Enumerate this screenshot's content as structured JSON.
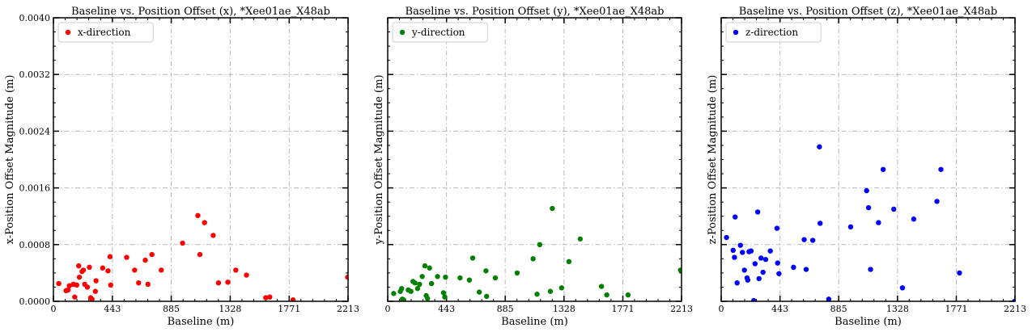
{
  "chart_data": [
    {
      "type": "scatter",
      "title": "Baseline vs. Position Offset (x), *Xee01ae_X48ab",
      "xlabel": "Baseline (m)",
      "ylabel": "x-Position Offset Magnitude (m)",
      "xlim": [
        0,
        2213
      ],
      "ylim": [
        0,
        0.004
      ],
      "xticks": [
        "0",
        "443",
        "885",
        "1328",
        "1771",
        "2213"
      ],
      "yticks": [
        "0.0000",
        "0.0008",
        "0.0016",
        "0.0024",
        "0.0032",
        "0.0040"
      ],
      "show_yticklabels": true,
      "grid": true,
      "legend_position": "top-left",
      "series": [
        {
          "name": "x-direction",
          "color": "#ff0000",
          "points": [
            [
              40,
              0.00025
            ],
            [
              95,
              0.00015
            ],
            [
              110,
              0.00016
            ],
            [
              120,
              0.00022
            ],
            [
              150,
              0.00024
            ],
            [
              160,
              6e-05
            ],
            [
              175,
              0.00023
            ],
            [
              190,
              0.0005
            ],
            [
              195,
              0.00034
            ],
            [
              215,
              0.00042
            ],
            [
              225,
              0.00044
            ],
            [
              235,
              0.00024
            ],
            [
              255,
              0.0002
            ],
            [
              270,
              0.00048
            ],
            [
              280,
              5e-05
            ],
            [
              290,
              3e-05
            ],
            [
              315,
              0.00014
            ],
            [
              320,
              0.00029
            ],
            [
              370,
              0.00047
            ],
            [
              410,
              0.00043
            ],
            [
              425,
              0.00063
            ],
            [
              430,
              0.00023
            ],
            [
              550,
              0.00062
            ],
            [
              610,
              0.00044
            ],
            [
              640,
              0.00026
            ],
            [
              690,
              0.00058
            ],
            [
              710,
              0.00024
            ],
            [
              740,
              0.00066
            ],
            [
              810,
              0.00044
            ],
            [
              970,
              0.00082
            ],
            [
              1085,
              0.00121
            ],
            [
              1100,
              0.00066
            ],
            [
              1135,
              0.00111
            ],
            [
              1200,
              0.00093
            ],
            [
              1240,
              0.00026
            ],
            [
              1310,
              0.00027
            ],
            [
              1370,
              0.00044
            ],
            [
              1450,
              0.00037
            ],
            [
              1595,
              5e-05
            ],
            [
              1625,
              6e-05
            ],
            [
              1800,
              2e-05
            ],
            [
              2210,
              0.00034
            ]
          ]
        }
      ]
    },
    {
      "type": "scatter",
      "title": "Baseline vs. Position Offset (y), *Xee01ae_X48ab",
      "xlabel": "Baseline (m)",
      "ylabel": "y-Position Offset Magnitude (m)",
      "xlim": [
        0,
        2213
      ],
      "ylim": [
        0,
        0.004
      ],
      "xticks": [
        "0",
        "443",
        "885",
        "1328",
        "1771",
        "2213"
      ],
      "yticks": [],
      "show_yticklabels": false,
      "grid": true,
      "legend_position": "top-left",
      "series": [
        {
          "name": "y-direction",
          "color": "#008000",
          "points": [
            [
              45,
              0.00011
            ],
            [
              95,
              0.00014
            ],
            [
              105,
              0.00018
            ],
            [
              110,
              3e-05
            ],
            [
              120,
              2e-05
            ],
            [
              155,
              0.00016
            ],
            [
              175,
              0.00014
            ],
            [
              190,
              0.00028
            ],
            [
              205,
              0.00026
            ],
            [
              225,
              0.00018
            ],
            [
              240,
              0.00024
            ],
            [
              260,
              0.00035
            ],
            [
              280,
              0.0005
            ],
            [
              290,
              8e-05
            ],
            [
              300,
              4e-05
            ],
            [
              315,
              0.00047
            ],
            [
              330,
              0.00025
            ],
            [
              375,
              0.00035
            ],
            [
              420,
              0.00012
            ],
            [
              430,
              6e-05
            ],
            [
              435,
              0.00034
            ],
            [
              545,
              0.00033
            ],
            [
              615,
              0.0003
            ],
            [
              640,
              0.00061
            ],
            [
              690,
              0.00013
            ],
            [
              740,
              0.00043
            ],
            [
              745,
              7e-05
            ],
            [
              810,
              0.00033
            ],
            [
              975,
              0.0004
            ],
            [
              1095,
              0.0006
            ],
            [
              1125,
              0.0001
            ],
            [
              1145,
              0.0008
            ],
            [
              1225,
              0.00014
            ],
            [
              1240,
              0.00131
            ],
            [
              1310,
              0.00019
            ],
            [
              1365,
              0.00056
            ],
            [
              1450,
              0.00088
            ],
            [
              1610,
              0.00021
            ],
            [
              1650,
              9e-05
            ],
            [
              1810,
              9e-05
            ],
            [
              2205,
              0.00044
            ]
          ]
        }
      ]
    },
    {
      "type": "scatter",
      "title": "Baseline vs. Position Offset (z), *Xee01ae_X48ab",
      "xlabel": "Baseline (m)",
      "ylabel": "z-Position Offset Magnitude (m)",
      "xlim": [
        0,
        2213
      ],
      "ylim": [
        0,
        0.004
      ],
      "xticks": [
        "0",
        "443",
        "885",
        "1328",
        "1771",
        "2213"
      ],
      "yticks": [],
      "show_yticklabels": false,
      "grid": true,
      "legend_position": "top-left",
      "series": [
        {
          "name": "z-direction",
          "color": "#0000ff",
          "points": [
            [
              40,
              0.0009
            ],
            [
              90,
              0.00072
            ],
            [
              100,
              0.00062
            ],
            [
              105,
              0.00119
            ],
            [
              120,
              0.00026
            ],
            [
              145,
              0.00079
            ],
            [
              160,
              0.00069
            ],
            [
              175,
              0.00044
            ],
            [
              195,
              0.00033
            ],
            [
              200,
              0.0003
            ],
            [
              210,
              0.0007
            ],
            [
              225,
              0.00071
            ],
            [
              245,
              1e-05
            ],
            [
              255,
              0.00053
            ],
            [
              275,
              0.00126
            ],
            [
              285,
              0.00032
            ],
            [
              300,
              0.00061
            ],
            [
              315,
              0.00041
            ],
            [
              335,
              0.00059
            ],
            [
              370,
              0.00071
            ],
            [
              420,
              0.00103
            ],
            [
              425,
              0.00054
            ],
            [
              435,
              0.00039
            ],
            [
              545,
              0.00048
            ],
            [
              625,
              0.00087
            ],
            [
              640,
              0.00045
            ],
            [
              690,
              0.00086
            ],
            [
              740,
              0.00218
            ],
            [
              745,
              0.0011
            ],
            [
              810,
              3e-05
            ],
            [
              975,
              0.00105
            ],
            [
              1095,
              0.00156
            ],
            [
              1110,
              0.00132
            ],
            [
              1125,
              0.00045
            ],
            [
              1185,
              0.00111
            ],
            [
              1220,
              0.00186
            ],
            [
              1300,
              0.0013
            ],
            [
              1365,
              0.00019
            ],
            [
              1450,
              0.00116
            ],
            [
              1625,
              0.00141
            ],
            [
              1655,
              0.00186
            ],
            [
              1795,
              0.0004
            ],
            [
              2210,
              0.0
            ]
          ]
        }
      ]
    }
  ]
}
